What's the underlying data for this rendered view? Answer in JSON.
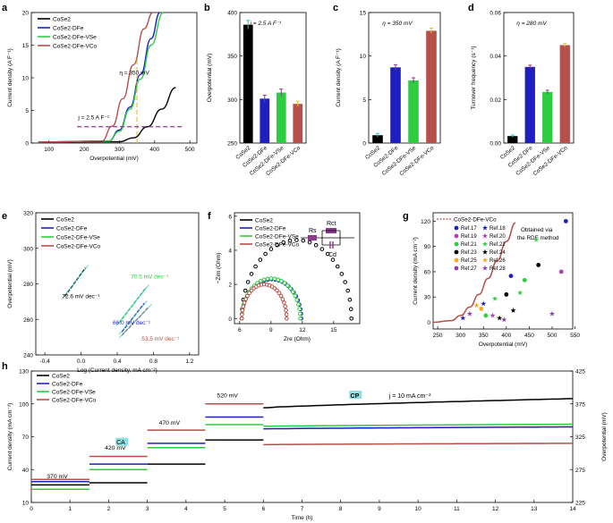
{
  "colors": {
    "cose2": "#000000",
    "dfe": "#1f1fbf",
    "vse": "#2ecc40",
    "vco": "#b5504a",
    "purple": "#8b3a8b",
    "yellow": "#e6c229",
    "cyan": "#2ec4c4"
  },
  "chart_data": [
    {
      "panel": "a",
      "type": "line",
      "xlabel": "Overpotential (mV)",
      "ylabel": "Current density (A F⁻¹)",
      "xlim": [
        50,
        520
      ],
      "ylim": [
        0,
        20
      ],
      "xticks": [
        "100",
        "200",
        "300",
        "400",
        "500"
      ],
      "yticks": [
        "0",
        "5",
        "10",
        "15",
        "20"
      ],
      "legend": [
        "CoSe₂",
        "CoSe₂-Dƒₑ",
        "CoSe₂-Dƒₑ-Vₛₑ",
        "CoSe₂-Dƒₑ-Vᶜₒ"
      ],
      "legend_text": [
        "CoSe2",
        "CoSe2-DFe",
        "CoSe2-DFe-VSe",
        "CoSe2-DFe-VCo"
      ],
      "annotations": [
        "η = 350 mV",
        "j = 2.5 A F⁻¹"
      ],
      "series": [
        {
          "name": "CoSe2",
          "x": [
            70,
            300,
            340,
            380,
            420,
            460
          ],
          "y": [
            0.15,
            0.2,
            0.8,
            2.5,
            5.2,
            8.5
          ]
        },
        {
          "name": "CoSe2-DFe",
          "x": [
            70,
            270,
            300,
            330,
            360,
            390,
            415
          ],
          "y": [
            0.15,
            0.3,
            2.0,
            5.5,
            10.5,
            16,
            20
          ]
        },
        {
          "name": "CoSe2-DFe-VSe",
          "x": [
            70,
            270,
            300,
            330,
            360,
            390,
            425
          ],
          "y": [
            0.15,
            0.3,
            1.8,
            5.2,
            9.8,
            15,
            20
          ]
        },
        {
          "name": "CoSe2-DFe-VCo",
          "x": [
            70,
            250,
            280,
            310,
            340,
            370,
            395
          ],
          "y": [
            0.15,
            0.3,
            2.6,
            6.8,
            12,
            17.5,
            20
          ]
        }
      ]
    },
    {
      "panel": "b",
      "type": "bar",
      "ylabel": "Overpotential (mV)",
      "ylim": [
        250,
        400
      ],
      "yticks": [
        "250",
        "300",
        "350",
        "400"
      ],
      "annotation": "j = 2.5 A F⁻¹",
      "categories": [
        "CoSe2",
        "CoSe2-DFe",
        "CoSe2-DFe-VSe",
        "CoSe2-DFe-VCo"
      ],
      "values": [
        386,
        301,
        308,
        295
      ],
      "errors": [
        5,
        4,
        4,
        3
      ]
    },
    {
      "panel": "c",
      "type": "bar",
      "ylabel": "Current density (A F⁻¹)",
      "ylim": [
        0,
        15
      ],
      "yticks": [
        "0",
        "5",
        "10",
        "15"
      ],
      "annotation": "η = 350 mV",
      "categories": [
        "CoSe2",
        "CoSe2-DFe",
        "CoSe2-DFe-VSe",
        "CoSe2-DFe-VCo"
      ],
      "values": [
        0.9,
        8.7,
        7.2,
        12.9
      ],
      "errors": [
        0.2,
        0.3,
        0.3,
        0.3
      ]
    },
    {
      "panel": "d",
      "type": "bar",
      "ylabel": "Turnover frequency (s⁻¹)",
      "ylim": [
        0,
        0.06
      ],
      "yticks": [
        "0.00",
        "0.02",
        "0.04",
        "0.06"
      ],
      "annotation": "η = 280 mV",
      "categories": [
        "CoSe2",
        "CoSe2-DFe",
        "CoSe2-DFe-VSe",
        "CoSe2-DFe-VCo"
      ],
      "values": [
        0.0032,
        0.035,
        0.0235,
        0.045
      ],
      "errors": [
        0.0005,
        0.0008,
        0.0008,
        0.0008
      ]
    },
    {
      "panel": "e",
      "type": "line",
      "xlabel": "Log (Current density, mA cm⁻²)",
      "ylabel": "Overpotential (mV)",
      "xlim": [
        -0.5,
        1.3
      ],
      "ylim": [
        240,
        320
      ],
      "xticks": [
        "-0.4",
        "0.0",
        "0.4",
        "0.8",
        "1.2"
      ],
      "yticks": [
        "240",
        "260",
        "280",
        "300",
        "320"
      ],
      "legend_text": [
        "CoSe2",
        "CoSe2-DFe",
        "CoSe2-DFe-VSe",
        "CoSe2-DFe-VCo"
      ],
      "slopes": [
        "72.6 mV dec⁻¹",
        "66.0 mV dec⁻¹",
        "70.5 mV dec⁻¹",
        "53.5 mV dec⁻¹"
      ],
      "series": [
        {
          "name": "CoSe2",
          "x": [
            -0.18,
            0.05
          ],
          "y": [
            273,
            289
          ]
        },
        {
          "name": "CoSe2-DFe",
          "x": [
            0.45,
            0.7
          ],
          "y": [
            253,
            269
          ]
        },
        {
          "name": "CoSe2-DFe-VSe",
          "x": [
            0.42,
            0.72
          ],
          "y": [
            258,
            278
          ]
        },
        {
          "name": "CoSe2-DFe-VCo",
          "x": [
            0.45,
            0.75
          ],
          "y": [
            251,
            267
          ]
        }
      ]
    },
    {
      "panel": "f",
      "type": "scatter",
      "xlabel": "Zre (Ohm)",
      "ylabel": "−Zim (Ohm)",
      "xlim": [
        5.5,
        17.5
      ],
      "ylim": [
        -0.3,
        6.2
      ],
      "xticks": [
        "6",
        "9",
        "12",
        "15"
      ],
      "yticks": [
        "0",
        "2",
        "4",
        "6"
      ],
      "legend_text": [
        "CoSe2",
        "CoSe2-DFe",
        "CoSe2-DFe-VSe",
        "CoSe2-DFe-VCo"
      ],
      "circuit_labels": [
        "Rs",
        "Rct",
        "Cd"
      ],
      "series": [
        {
          "name": "CoSe2",
          "x0": 6.2,
          "x1": 16.7,
          "peak": 4.6
        },
        {
          "name": "CoSe2-DFe",
          "x0": 6.2,
          "x1": 11.9,
          "peak": 2.3
        },
        {
          "name": "CoSe2-DFe-VSe",
          "x0": 6.2,
          "x1": 11.8,
          "peak": 2.35
        },
        {
          "name": "CoSe2-DFe-VCo",
          "x0": 6.2,
          "x1": 10.5,
          "peak": 2.0
        }
      ]
    },
    {
      "panel": "g",
      "type": "scatter",
      "xlabel": "Overpotential (mV)",
      "ylabel": "Current density (mA cm⁻²)",
      "xlim": [
        240,
        545
      ],
      "ylim": [
        -8,
        130
      ],
      "xticks": [
        "250",
        "300",
        "350",
        "400",
        "450",
        "500",
        "550"
      ],
      "yticks": [
        "0",
        "30",
        "60",
        "90",
        "120"
      ],
      "legend_main": "CoSe2-DFe-VCo",
      "legend": [
        "Ref.17",
        "Ref.18",
        "Ref.19",
        "Ref.20",
        "Ref.21",
        "Ref.22",
        "Ref.23",
        "Ref.24",
        "Ref.25",
        "Ref.26",
        "Ref.27",
        "Ref.28"
      ],
      "note": [
        "Obtained via",
        "the RDE method"
      ],
      "curve": {
        "x": [
          240,
          280,
          300,
          320,
          340,
          360,
          380,
          400,
          420,
          440
        ],
        "y": [
          0,
          2,
          8,
          18,
          33,
          52,
          73,
          96,
          118,
          135
        ]
      },
      "points": [
        {
          "x": 530,
          "y": 120,
          "ref": "Ref.17"
        },
        {
          "x": 350,
          "y": 22,
          "ref": "Ref.18"
        },
        {
          "x": 465,
          "y": 98,
          "ref": "Ref.22"
        },
        {
          "x": 410,
          "y": 55,
          "ref": "Ref.17"
        },
        {
          "x": 440,
          "y": 50,
          "ref": "Ref.21"
        },
        {
          "x": 520,
          "y": 60,
          "ref": "Ref.19"
        },
        {
          "x": 470,
          "y": 68,
          "ref": "Ref.23"
        },
        {
          "x": 430,
          "y": 35,
          "ref": "Ref.22"
        },
        {
          "x": 400,
          "y": 33,
          "ref": "Ref.23"
        },
        {
          "x": 375,
          "y": 28,
          "ref": "Ref.22"
        },
        {
          "x": 335,
          "y": 20,
          "ref": "Ref.26"
        },
        {
          "x": 320,
          "y": 10,
          "ref": "Ref.28"
        },
        {
          "x": 345,
          "y": 16,
          "ref": "Ref.25"
        },
        {
          "x": 355,
          "y": 8,
          "ref": "Ref.21"
        },
        {
          "x": 385,
          "y": 5,
          "ref": "Ref.24"
        },
        {
          "x": 415,
          "y": 14,
          "ref": "Ref.24"
        },
        {
          "x": 395,
          "y": 3,
          "ref": "Ref.28"
        },
        {
          "x": 305,
          "y": 5,
          "ref": "Ref.18"
        },
        {
          "x": 500,
          "y": 10,
          "ref": "Ref.28"
        },
        {
          "x": 370,
          "y": 8,
          "ref": "Ref.20"
        }
      ]
    },
    {
      "panel": "h",
      "type": "line",
      "xlabel": "Time (h)",
      "ylabel": "Current density (mA cm⁻²)",
      "ylabel2": "Overpotential (mV)",
      "xlim": [
        0,
        14
      ],
      "ylim": [
        10,
        130
      ],
      "ylim2": [
        225,
        425
      ],
      "xticks": [
        "0",
        "1",
        "2",
        "3",
        "4",
        "5",
        "6",
        "7",
        "8",
        "9",
        "10",
        "11",
        "12",
        "13",
        "14"
      ],
      "yticks": [
        "10",
        "40",
        "70",
        "100",
        "130"
      ],
      "yticks2": [
        "225",
        "275",
        "325",
        "375",
        "425"
      ],
      "legend_text": [
        "CoSe2",
        "CoSe2-DFe",
        "CoSe2-DFe-VSe",
        "CoSe2-DFe-VCo"
      ],
      "labels": [
        "370 mV",
        "420 mV",
        "470 mV",
        "520 mV",
        "CA",
        "CP",
        "j = 10 mA cm⁻²"
      ],
      "steps": [
        {
          "name": "CoSe2",
          "values": [
            26,
            28,
            45,
            67
          ]
        },
        {
          "name": "CoSe2-DFe",
          "values": [
            29,
            45,
            64,
            88
          ]
        },
        {
          "name": "CoSe2-DFe-VSe",
          "values": [
            22,
            40,
            60,
            81
          ]
        },
        {
          "name": "CoSe2-DFe-VCo",
          "values": [
            31,
            52,
            76,
            100
          ]
        }
      ],
      "cp": [
        {
          "name": "CoSe2",
          "start": 369,
          "end": 383
        },
        {
          "name": "CoSe2-DFe",
          "start": 337,
          "end": 340
        },
        {
          "name": "CoSe2-DFe-VSe",
          "start": 341,
          "end": 344
        },
        {
          "name": "CoSe2-DFe-VCo",
          "start": 313,
          "end": 315
        }
      ]
    }
  ]
}
